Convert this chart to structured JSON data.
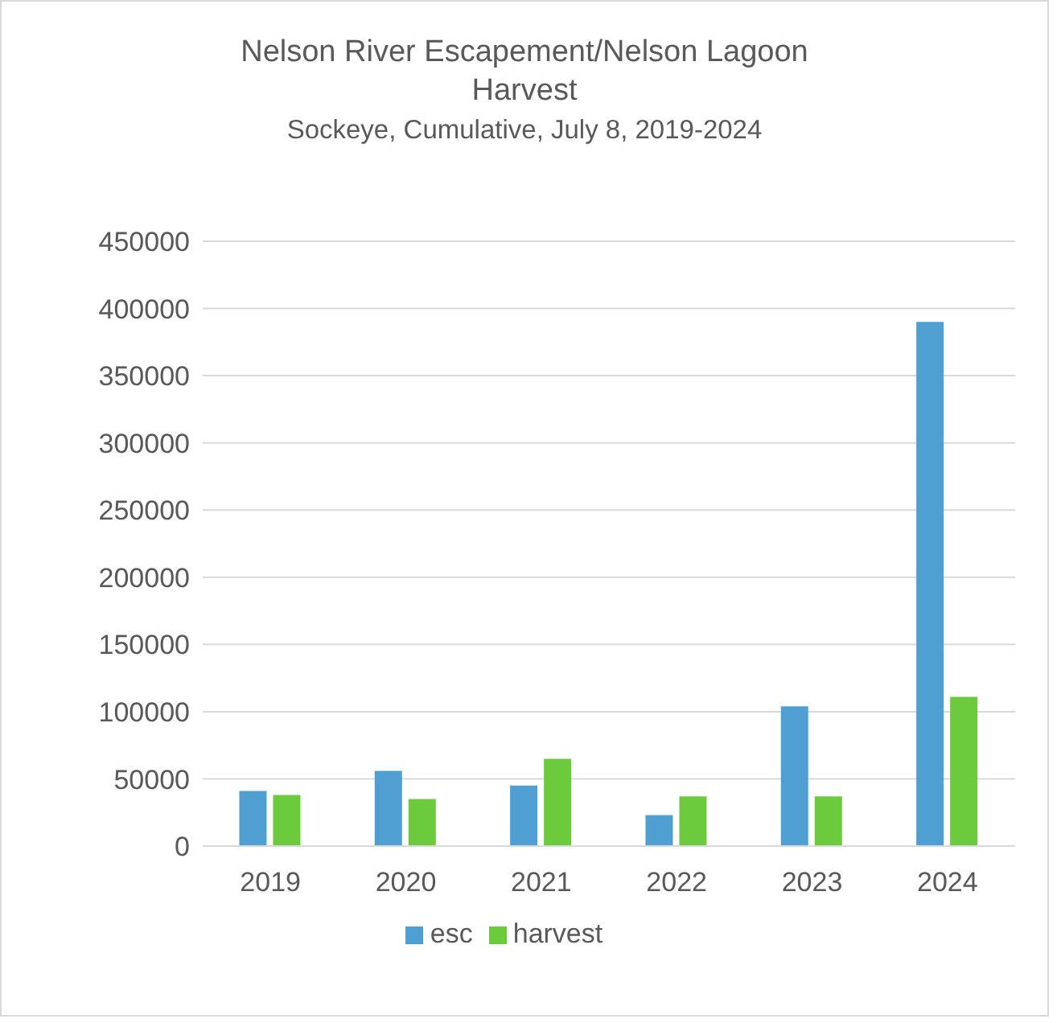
{
  "chart_data": {
    "type": "bar",
    "title": "Nelson River Escapement/Nelson Lagoon Harvest",
    "subtitle": "Sockeye, Cumulative, July 8, 2019-2024",
    "categories": [
      "2019",
      "2020",
      "2021",
      "2022",
      "2023",
      "2024"
    ],
    "series": [
      {
        "name": "esc",
        "color": "#4f9fd3",
        "values": [
          41000,
          56000,
          45000,
          23000,
          104000,
          390000
        ]
      },
      {
        "name": "harvest",
        "color": "#6ccb3c",
        "values": [
          38000,
          35000,
          65000,
          37000,
          37000,
          111000
        ]
      }
    ],
    "ylim": [
      0,
      450000
    ],
    "yticks": [
      0,
      50000,
      100000,
      150000,
      200000,
      250000,
      300000,
      350000,
      400000,
      450000
    ],
    "grid": "y",
    "legend": "bottom"
  }
}
